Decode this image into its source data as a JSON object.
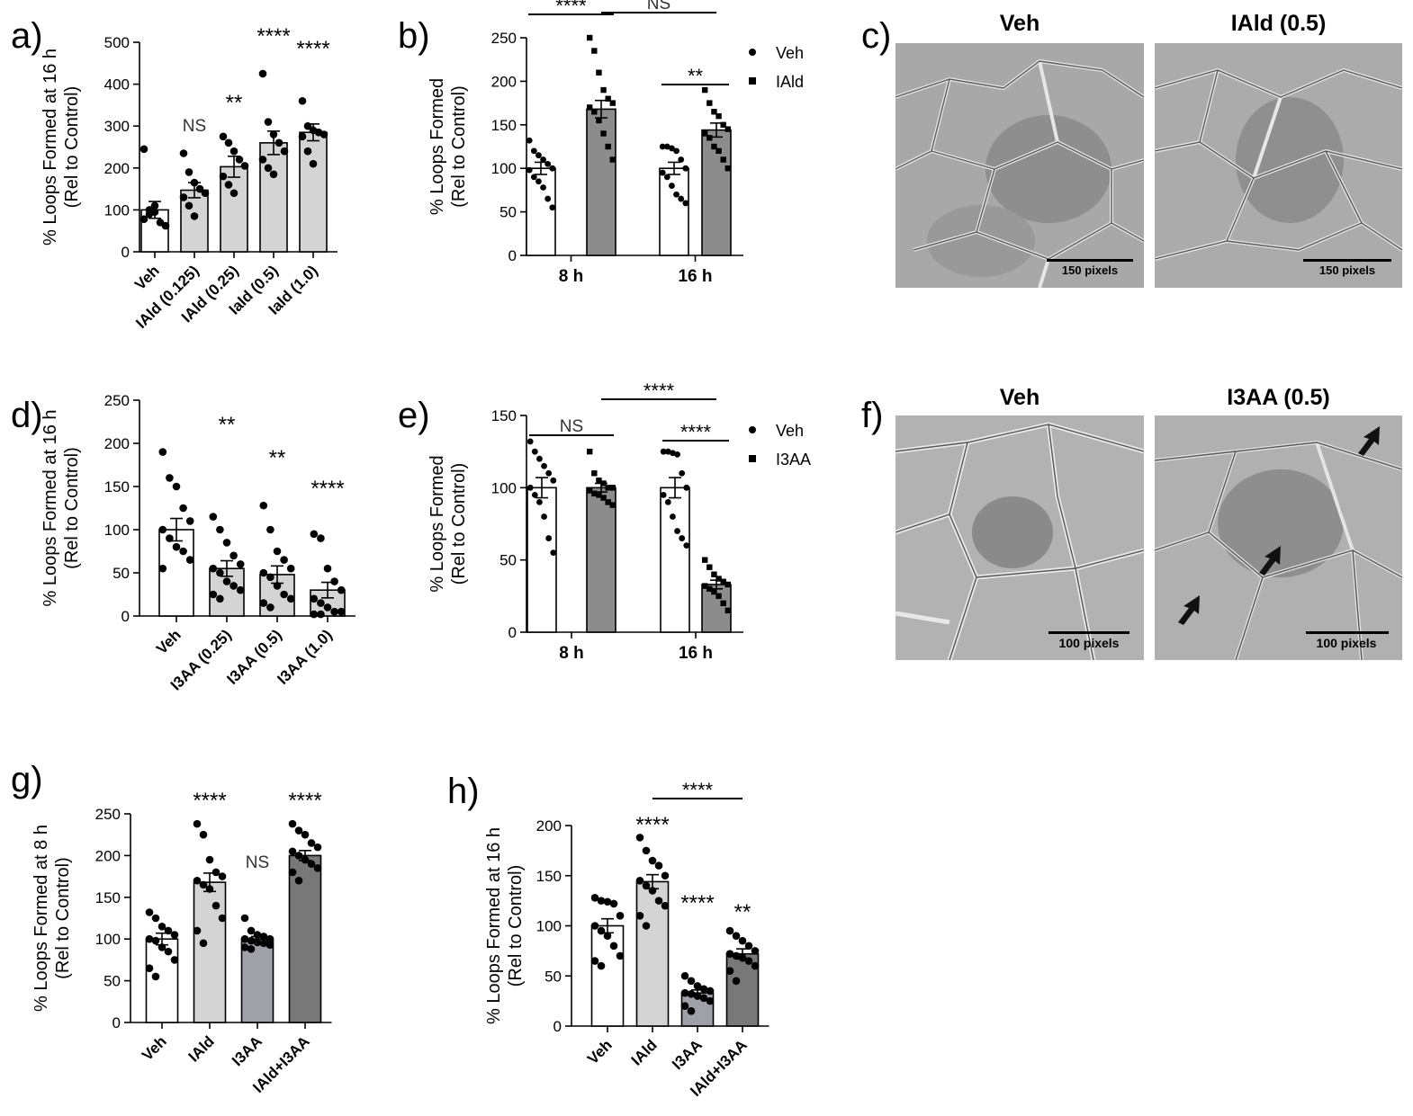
{
  "panel_labels": {
    "a": "a)",
    "b": "b)",
    "c": "c)",
    "d": "d)",
    "e": "e)",
    "f": "f)",
    "g": "g)",
    "h": "h)"
  },
  "colors": {
    "veh": "#ffffff",
    "treat_light": "#d4d4d4",
    "treat_dark": "#8c8c8c",
    "i3aa_mid": "#a0a0a8",
    "combo": "#787878",
    "micrograph": "#a9a9a9"
  },
  "chart_data": [
    {
      "id": "a",
      "type": "bar",
      "ylabel": "% Loops Formed at 16 h",
      "ylabel2": "(Rel to Control)",
      "ylim": [
        0,
        500
      ],
      "yticks": [
        0,
        100,
        200,
        300,
        400,
        500
      ],
      "categories": [
        "Veh",
        "IAld (0.125)",
        "IAld (0.25)",
        "Iald (0.5)",
        "Iald (1.0)"
      ],
      "values": [
        100,
        147,
        203,
        260,
        285
      ],
      "sem": [
        20,
        18,
        25,
        28,
        20
      ],
      "fill": [
        "#ffffff",
        "#d4d4d4",
        "#d4d4d4",
        "#d4d4d4",
        "#d4d4d4"
      ],
      "points": [
        [
          245,
          100,
          95,
          70,
          62,
          78,
          90,
          110
        ],
        [
          235,
          190,
          165,
          150,
          140,
          130,
          110,
          85
        ],
        [
          275,
          260,
          240,
          220,
          205,
          180,
          160,
          140
        ],
        [
          425,
          310,
          280,
          260,
          240,
          220,
          200,
          185
        ],
        [
          360,
          300,
          290,
          285,
          280,
          275,
          240,
          210
        ]
      ],
      "annotations": [
        "",
        "NS",
        "**",
        "****",
        "****"
      ]
    },
    {
      "id": "b",
      "type": "bar",
      "ylabel": "% Loops Formed",
      "ylabel2": "(Rel to Control)",
      "ylim": [
        0,
        250
      ],
      "yticks": [
        0,
        50,
        100,
        150,
        200,
        250
      ],
      "categories": [
        "8 h",
        "16 h"
      ],
      "series": [
        {
          "name": "Veh",
          "values": [
            100,
            100
          ],
          "sem": [
            7,
            7
          ],
          "fill": "#ffffff",
          "marker": "circle",
          "points": [
            [
              132,
              120,
              115,
              110,
              105,
              100,
              98,
              90,
              85,
              78,
              65,
              55
            ],
            [
              125,
              125,
              123,
              120,
              110,
              100,
              95,
              90,
              80,
              70,
              65,
              60
            ]
          ]
        },
        {
          "name": "IAld",
          "values": [
            168,
            144
          ],
          "sem": [
            10,
            8
          ],
          "fill": "#8c8c8c",
          "marker": "square",
          "points": [
            [
              250,
              235,
              210,
              190,
              180,
              175,
              170,
              165,
              155,
              140,
              125,
              110
            ],
            [
              190,
              175,
              165,
              160,
              150,
              145,
              140,
              135,
              125,
              120,
              110,
              100
            ]
          ]
        }
      ],
      "brackets": [
        {
          "label": "****",
          "from": "8 h/Veh",
          "to": "8 h/IAld"
        },
        {
          "label": "NS",
          "from": "8 h/IAld",
          "to": "16 h/IAld"
        },
        {
          "label": "**",
          "from": "16 h/Veh",
          "to": "16 h/IAld"
        }
      ],
      "legend": "top-right"
    },
    {
      "id": "d",
      "type": "bar",
      "ylabel": "% Loops Formed at 16 h",
      "ylabel2": "(Rel to Control)",
      "ylim": [
        0,
        250
      ],
      "yticks": [
        0,
        50,
        100,
        150,
        200,
        250
      ],
      "categories": [
        "Veh",
        "I3AA (0.25)",
        "I3AA (0.5)",
        "I3AA (1.0)"
      ],
      "values": [
        100,
        55,
        48,
        30
      ],
      "sem": [
        13,
        9,
        10,
        9
      ],
      "fill": [
        "#ffffff",
        "#d4d4d4",
        "#d4d4d4",
        "#d4d4d4"
      ],
      "points": [
        [
          190,
          160,
          150,
          125,
          110,
          100,
          90,
          80,
          75,
          65,
          55
        ],
        [
          115,
          100,
          85,
          70,
          60,
          55,
          50,
          40,
          35,
          30,
          25,
          20
        ],
        [
          128,
          100,
          75,
          65,
          55,
          50,
          45,
          35,
          25,
          20,
          15,
          10
        ],
        [
          95,
          90,
          55,
          40,
          30,
          20,
          15,
          10,
          5,
          5,
          2,
          2
        ]
      ],
      "annotations": [
        "",
        "**",
        "**",
        "****"
      ]
    },
    {
      "id": "e",
      "type": "bar",
      "ylabel": "% Loops Formed",
      "ylabel2": "(Rel to Control)",
      "ylim": [
        0,
        150
      ],
      "yticks": [
        0,
        50,
        100,
        150
      ],
      "categories": [
        "8 h",
        "16 h"
      ],
      "series": [
        {
          "name": "Veh",
          "values": [
            100,
            100
          ],
          "sem": [
            7,
            7
          ],
          "fill": "#ffffff",
          "marker": "circle",
          "points": [
            [
              132,
              125,
              120,
              115,
              110,
              105,
              100,
              95,
              90,
              80,
              65,
              55
            ],
            [
              125,
              125,
              124,
              123,
              110,
              100,
              95,
              90,
              80,
              70,
              65,
              60
            ]
          ]
        },
        {
          "name": "I3AA",
          "values": [
            100,
            33
          ],
          "sem": [
            3,
            3
          ],
          "fill": "#8c8c8c",
          "marker": "square",
          "points": [
            [
              125,
              110,
              105,
              103,
              100,
              100,
              98,
              96,
              95,
              93,
              90,
              88
            ],
            [
              50,
              45,
              40,
              37,
              35,
              33,
              32,
              30,
              28,
              25,
              20,
              15
            ]
          ]
        }
      ],
      "brackets": [
        {
          "label": "NS",
          "from": "8 h/Veh",
          "to": "8 h/I3AA"
        },
        {
          "label": "****",
          "from": "8 h/I3AA",
          "to": "16 h/I3AA"
        },
        {
          "label": "****",
          "from": "16 h/Veh",
          "to": "16 h/I3AA"
        }
      ],
      "legend": "top-right"
    },
    {
      "id": "g",
      "type": "bar",
      "ylabel": "% Loops Formed at 8 h",
      "ylabel2": "(Rel to Control)",
      "ylim": [
        0,
        250
      ],
      "yticks": [
        0,
        50,
        100,
        150,
        200,
        250
      ],
      "categories": [
        "Veh",
        "IAld",
        "I3AA",
        "IAld+I3AA"
      ],
      "values": [
        100,
        168,
        100,
        200
      ],
      "sem": [
        7,
        11,
        3,
        6
      ],
      "fill": [
        "#ffffff",
        "#d4d4d4",
        "#a0a0a8",
        "#787878"
      ],
      "points": [
        [
          132,
          125,
          115,
          110,
          105,
          100,
          98,
          90,
          85,
          75,
          65,
          55
        ],
        [
          238,
          225,
          195,
          180,
          175,
          170,
          165,
          160,
          140,
          125,
          110,
          95
        ],
        [
          125,
          110,
          105,
          103,
          100,
          100,
          98,
          96,
          95,
          93,
          90,
          88
        ],
        [
          238,
          230,
          225,
          215,
          210,
          205,
          200,
          195,
          190,
          185,
          180,
          170
        ]
      ],
      "annotations": [
        "",
        "****",
        "NS",
        "****"
      ]
    },
    {
      "id": "h",
      "type": "bar",
      "ylabel": "% Loops Formed at 16 h",
      "ylabel2": "(Rel to Control)",
      "ylim": [
        0,
        200
      ],
      "yticks": [
        0,
        50,
        100,
        150,
        200
      ],
      "categories": [
        "Veh",
        "IAld",
        "I3AA",
        "IAld+I3AA"
      ],
      "values": [
        100,
        144,
        33,
        72
      ],
      "sem": [
        7,
        7,
        3,
        5
      ],
      "fill": [
        "#ffffff",
        "#d4d4d4",
        "#a0a0a8",
        "#787878"
      ],
      "points": [
        [
          128,
          125,
          124,
          122,
          110,
          100,
          95,
          90,
          80,
          70,
          65,
          60
        ],
        [
          188,
          175,
          165,
          160,
          150,
          145,
          140,
          135,
          125,
          120,
          110,
          100
        ],
        [
          50,
          45,
          40,
          37,
          35,
          33,
          32,
          30,
          28,
          25,
          20,
          15
        ],
        [
          95,
          90,
          85,
          80,
          75,
          72,
          70,
          68,
          65,
          60,
          55,
          45
        ]
      ],
      "annotations": [
        "",
        "****",
        "****",
        "**"
      ],
      "brackets": [
        {
          "label": "****",
          "from": "IAld",
          "to": "IAld+I3AA"
        }
      ]
    }
  ],
  "micrographs": {
    "c": {
      "left_title": "Veh",
      "right_title": "IAld (0.5)",
      "scale_text": "150 pixels"
    },
    "f": {
      "left_title": "Veh",
      "right_title": "I3AA (0.5)",
      "scale_text": "100 pixels"
    }
  }
}
